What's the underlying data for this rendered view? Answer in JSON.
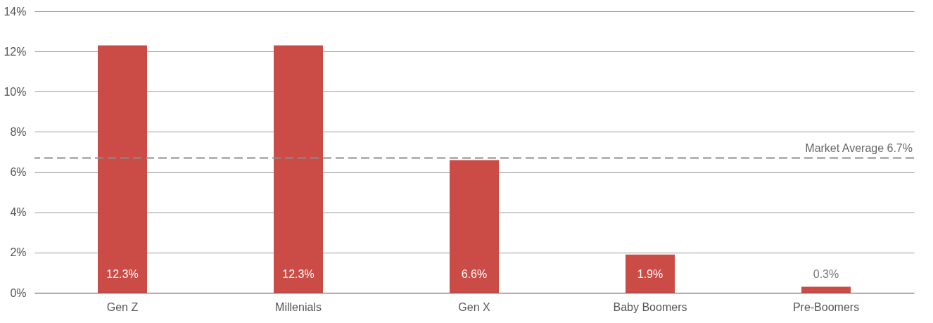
{
  "chart_data": {
    "type": "bar",
    "categories": [
      "Gen Z",
      "Millenials",
      "Gen X",
      "Baby Boomers",
      "Pre-Boomers"
    ],
    "values": [
      12.3,
      12.3,
      6.6,
      1.9,
      0.3
    ],
    "value_labels": [
      "12.3%",
      "12.3%",
      "6.6%",
      "1.9%",
      "0.3%"
    ],
    "color": "#cb4b46",
    "ylim": [
      0,
      14
    ],
    "yticks": [
      {
        "value": 0,
        "label": "0%"
      },
      {
        "value": 2,
        "label": "2%"
      },
      {
        "value": 4,
        "label": "4%"
      },
      {
        "value": 6,
        "label": "6%"
      },
      {
        "value": 8,
        "label": "8%"
      },
      {
        "value": 10,
        "label": "10%"
      },
      {
        "value": 12,
        "label": "12%"
      },
      {
        "value": 14,
        "label": "14%"
      }
    ],
    "grid": "y",
    "ref_lines": [
      {
        "axis": "y",
        "value": 6.7,
        "label": "Market Average 6.7%",
        "color": "#8c8c8c",
        "line_style": "dashed"
      }
    ]
  }
}
